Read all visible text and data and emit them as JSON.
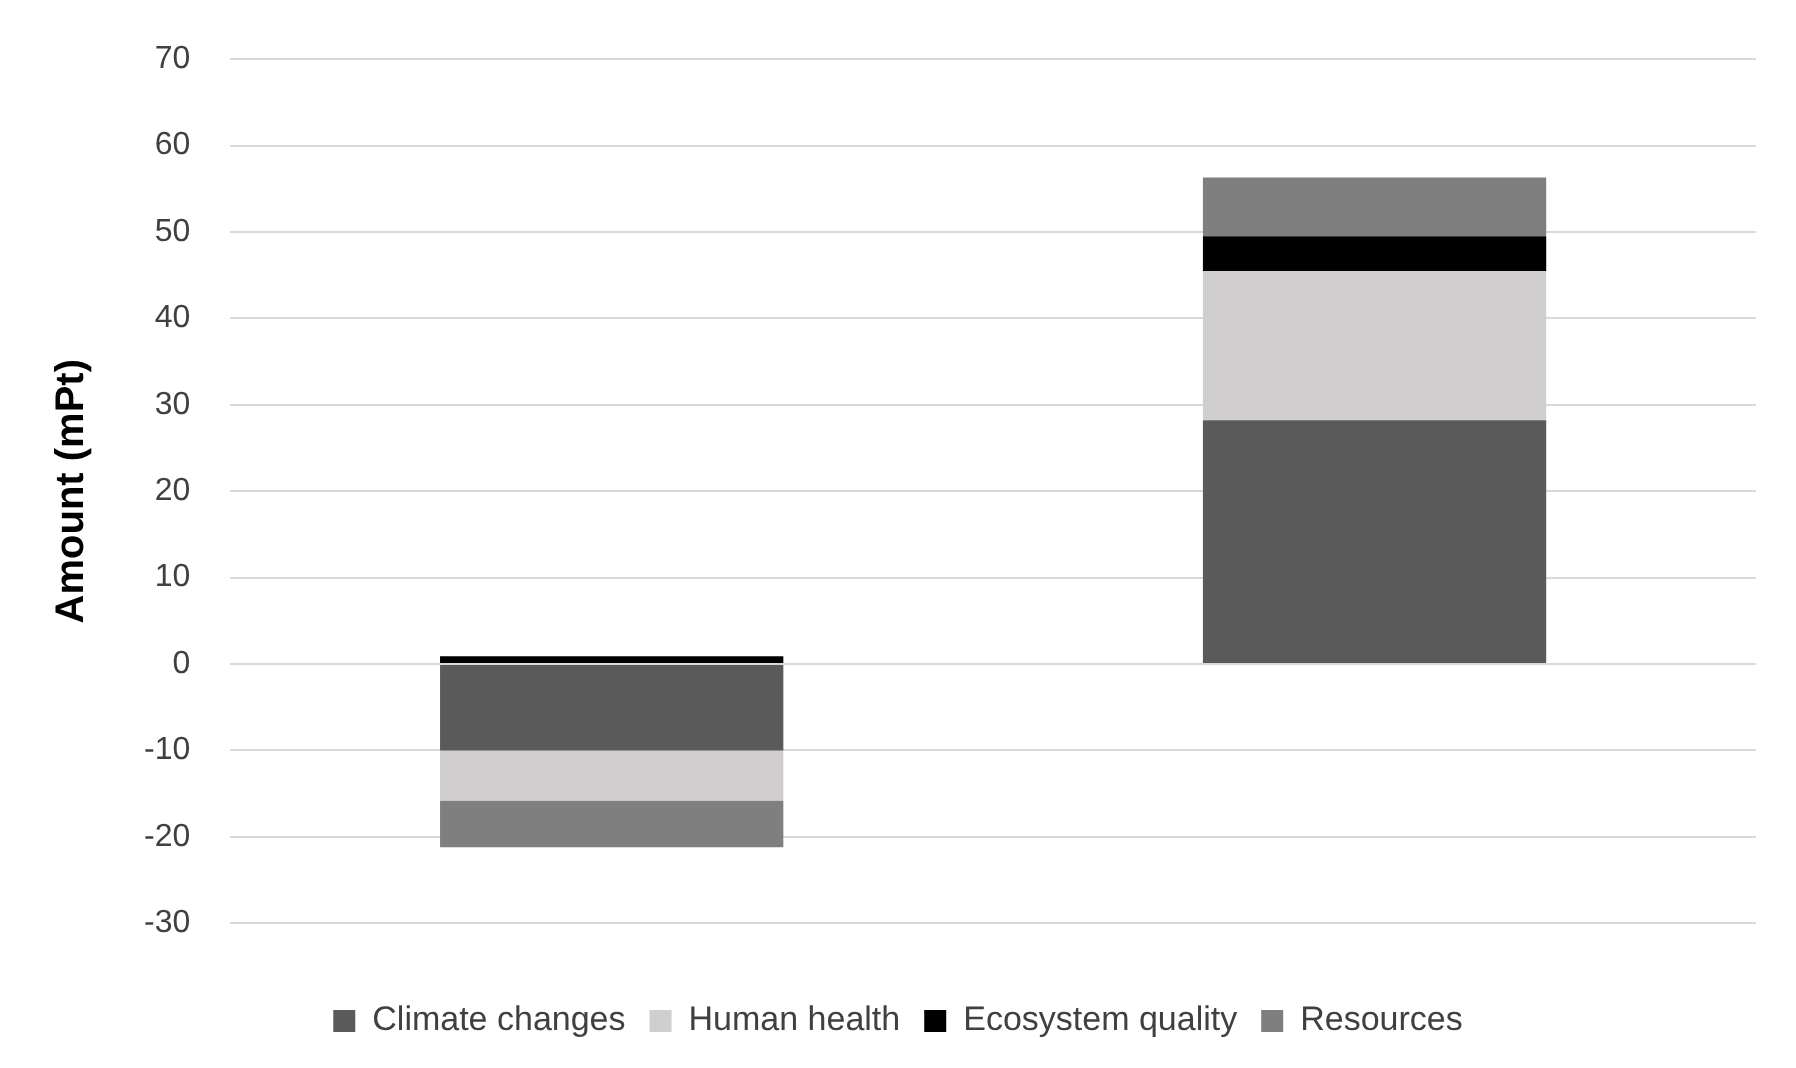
{
  "chart_data": {
    "type": "bar",
    "ylabel": "Amount (mPt)",
    "categories": [
      null,
      null
    ],
    "stacked": true,
    "series": [
      {
        "name": "Climate changes",
        "color": "#5a5a5a",
        "values": [
          -10.0,
          28.2
        ]
      },
      {
        "name": "Human health",
        "color": "#d0cece",
        "values": [
          -5.8,
          17.3
        ]
      },
      {
        "name": "Ecosystem quality",
        "color": "#000000",
        "values": [
          0.9,
          4.0
        ]
      },
      {
        "name": "Resources",
        "color": "#7f7f7f",
        "values": [
          -5.4,
          6.8
        ]
      }
    ],
    "ylim": [
      -30,
      70
    ],
    "yticks": [
      -30,
      -20,
      -10,
      0,
      10,
      20,
      30,
      40,
      50,
      60,
      70
    ],
    "grid": "y",
    "legend": "bottom"
  }
}
